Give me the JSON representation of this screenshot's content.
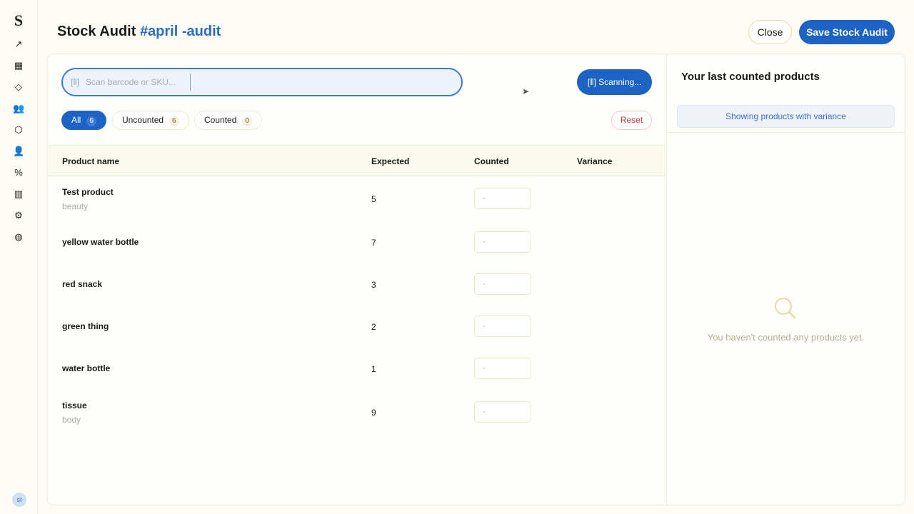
{
  "sidebar": {
    "logo": "S",
    "items": [
      {
        "icon": "trending-icon",
        "glyph": "↗"
      },
      {
        "icon": "calendar-icon",
        "glyph": "▦"
      },
      {
        "icon": "tag-icon",
        "glyph": "◇"
      },
      {
        "icon": "users-icon",
        "glyph": "👥"
      },
      {
        "icon": "box-icon",
        "glyph": "⬡"
      },
      {
        "icon": "user-check-icon",
        "glyph": "👤"
      },
      {
        "icon": "percent-icon",
        "glyph": "%"
      },
      {
        "icon": "bar-chart-icon",
        "glyph": "▥"
      },
      {
        "icon": "gear-icon",
        "glyph": "⚙"
      },
      {
        "icon": "globe-icon",
        "glyph": "◍"
      }
    ],
    "avatar": "st"
  },
  "header": {
    "title": "Stock Audit",
    "tag": "#april -audit",
    "close_label": "Close",
    "save_label": "Save Stock Audit"
  },
  "scanner": {
    "placeholder": "Scan barcode or SKU...",
    "button_label": "Scanning..."
  },
  "filters": [
    {
      "label": "All",
      "count": "6",
      "active": true
    },
    {
      "label": "Uncounted",
      "count": "6"
    },
    {
      "label": "Counted",
      "count": "0"
    }
  ],
  "reset_label": "Reset",
  "table": {
    "columns": [
      "Product name",
      "Expected",
      "Counted",
      "Variance"
    ],
    "rows": [
      {
        "name": "Test product",
        "category": "beauty",
        "expected": "5",
        "counted": "-"
      },
      {
        "name": "yellow water bottle",
        "category": "",
        "expected": "7",
        "counted": "-"
      },
      {
        "name": "red snack",
        "category": "",
        "expected": "3",
        "counted": "-"
      },
      {
        "name": "green thing",
        "category": "",
        "expected": "2",
        "counted": "-"
      },
      {
        "name": "water bottle",
        "category": "",
        "expected": "1",
        "counted": "-"
      },
      {
        "name": "tissue",
        "category": "body",
        "expected": "9",
        "counted": "-"
      }
    ]
  },
  "right_panel": {
    "title": "Your last counted products",
    "filter_label": "Showing products with variance",
    "empty_text": "You haven't counted any products yet."
  }
}
